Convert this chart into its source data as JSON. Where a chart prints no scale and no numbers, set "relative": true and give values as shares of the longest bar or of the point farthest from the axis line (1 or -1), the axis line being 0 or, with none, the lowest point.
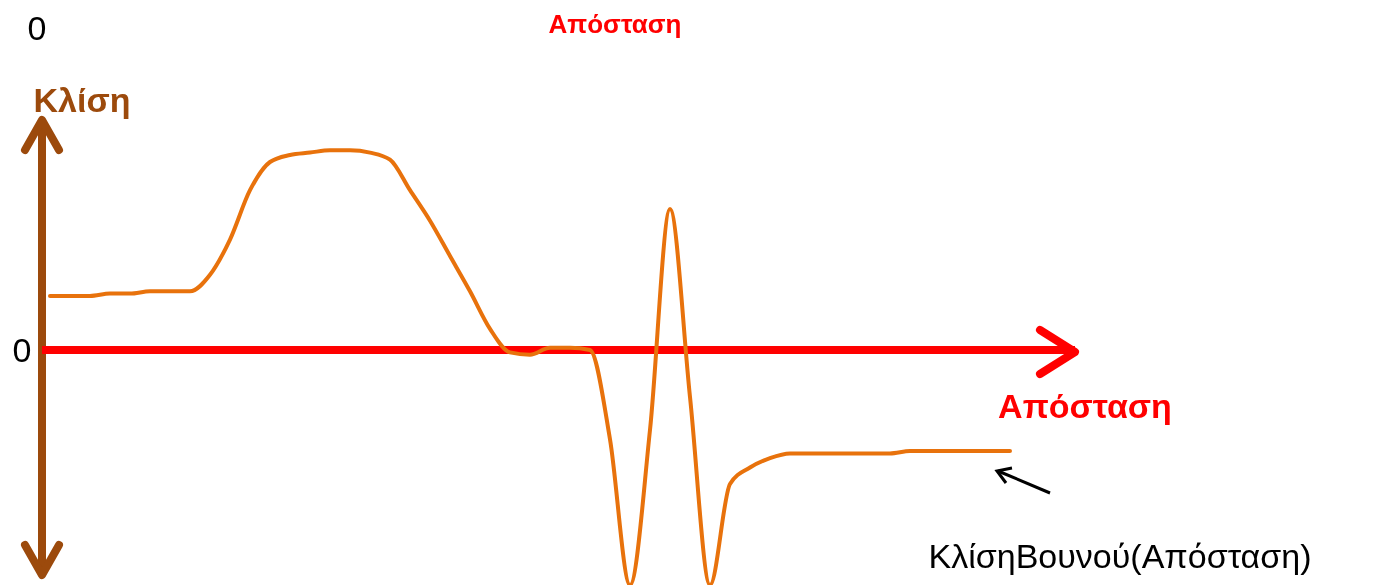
{
  "chart_data": {
    "type": "line",
    "relative": true,
    "title": "Απόσταση",
    "xlabel": "Απόσταση",
    "ylabel": "Κλίση",
    "categories": [
      null,
      null,
      null,
      null,
      null,
      null,
      null,
      null,
      null,
      null,
      null,
      null,
      null,
      null,
      null,
      null,
      null,
      null,
      null,
      null,
      null,
      null,
      null,
      null,
      null,
      null,
      null,
      null,
      null,
      null,
      null,
      null,
      null,
      null,
      null,
      null,
      null,
      null,
      null,
      null,
      null,
      null,
      null,
      null,
      null,
      null,
      null,
      null,
      null
    ],
    "series": [
      {
        "color": "#e8720c",
        "values": [
          0.23,
          0.23,
          0.23,
          0.24,
          0.24,
          0.25,
          0.25,
          0.25,
          0.32,
          0.47,
          0.68,
          0.8,
          0.83,
          0.84,
          0.85,
          0.85,
          0.84,
          0.81,
          0.68,
          0.55,
          0.4,
          0.25,
          0.09,
          -0.01,
          -0.02,
          0.01,
          0.01,
          0,
          -0.38,
          -1,
          -0.34,
          0.6,
          -0.2,
          -1,
          -0.57,
          -0.5,
          -0.46,
          -0.44,
          -0.44,
          -0.44,
          -0.44,
          -0.44,
          -0.44,
          -0.43,
          -0.43,
          -0.43,
          -0.43,
          -0.43,
          -0.43
        ]
      }
    ],
    "annotations": [
      "0",
      "0",
      "ΚλίσηΒουνού(Απόσταση)"
    ],
    "ref_lines": [
      {
        "axis": "y",
        "value": 0,
        "color": "#ff0000"
      }
    ]
  }
}
